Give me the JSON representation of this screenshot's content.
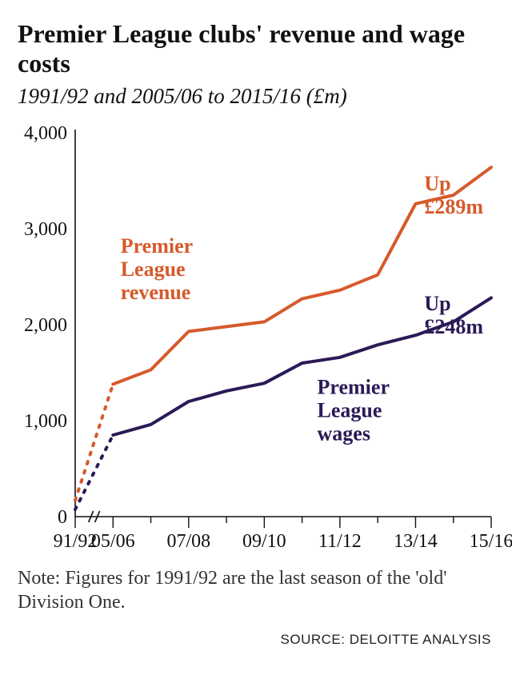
{
  "title": "Premier League clubs' revenue and wage costs",
  "subtitle": "1991/92 and 2005/06 to 2015/16 (£m)",
  "note": "Note: Figures for 1991/92 are the last season of the 'old' Division One.",
  "source": "SOURCE: DELOITTE ANALYSIS",
  "chart": {
    "type": "line",
    "background_color": "#ffffff",
    "axis_color": "#111111",
    "tick_font_size": 24,
    "label_font_size": 24,
    "annotation_font_size": 26,
    "y": {
      "min": 0,
      "max": 4000,
      "ticks": [
        0,
        1000,
        2000,
        3000,
        4000
      ],
      "tick_labels": [
        "0",
        "1,000",
        "2,000",
        "3,000",
        "4,000"
      ]
    },
    "x": {
      "positions": [
        0,
        1,
        2,
        3,
        4,
        5,
        6,
        7,
        8,
        9,
        10,
        11
      ],
      "tick_labels": [
        "91/92",
        "05/06",
        "07/08",
        "09/10",
        "11/12",
        "13/14",
        "15/16"
      ],
      "tick_label_positions": [
        0,
        1,
        3,
        5,
        7,
        9,
        11
      ],
      "break_between": [
        0,
        1
      ]
    },
    "series": [
      {
        "name": "Premier League revenue",
        "color": "#d65a2b",
        "line_width": 4,
        "label_lines": [
          "Premier",
          "League",
          "revenue"
        ],
        "label_xy": [
          1.2,
          2750
        ],
        "end_label_lines": [
          "Up",
          "£289m"
        ],
        "end_label_xy": [
          11.05,
          3400
        ],
        "points_dashed": [
          {
            "x": 0,
            "y": 170
          },
          {
            "x": 1,
            "y": 1380
          }
        ],
        "points_solid": [
          {
            "x": 1,
            "y": 1380
          },
          {
            "x": 2,
            "y": 1530
          },
          {
            "x": 3,
            "y": 1930
          },
          {
            "x": 4,
            "y": 1980
          },
          {
            "x": 5,
            "y": 2030
          },
          {
            "x": 6,
            "y": 2270
          },
          {
            "x": 7,
            "y": 2360
          },
          {
            "x": 8,
            "y": 2520
          },
          {
            "x": 9,
            "y": 3260
          },
          {
            "x": 10,
            "y": 3350
          },
          {
            "x": 11,
            "y": 3640
          }
        ]
      },
      {
        "name": "Premier League wages",
        "color": "#2b1a57",
        "line_width": 4,
        "label_lines": [
          "Premier",
          "League",
          "wages"
        ],
        "label_xy": [
          6.4,
          1280
        ],
        "end_label_lines": [
          "Up",
          "£248m"
        ],
        "end_label_xy": [
          11.05,
          2150
        ],
        "points_dashed": [
          {
            "x": 0,
            "y": 75
          },
          {
            "x": 1,
            "y": 850
          }
        ],
        "points_solid": [
          {
            "x": 1,
            "y": 850
          },
          {
            "x": 2,
            "y": 960
          },
          {
            "x": 3,
            "y": 1200
          },
          {
            "x": 4,
            "y": 1310
          },
          {
            "x": 5,
            "y": 1390
          },
          {
            "x": 6,
            "y": 1600
          },
          {
            "x": 7,
            "y": 1660
          },
          {
            "x": 8,
            "y": 1790
          },
          {
            "x": 9,
            "y": 1890
          },
          {
            "x": 10,
            "y": 2030
          },
          {
            "x": 11,
            "y": 2280
          }
        ]
      }
    ]
  }
}
